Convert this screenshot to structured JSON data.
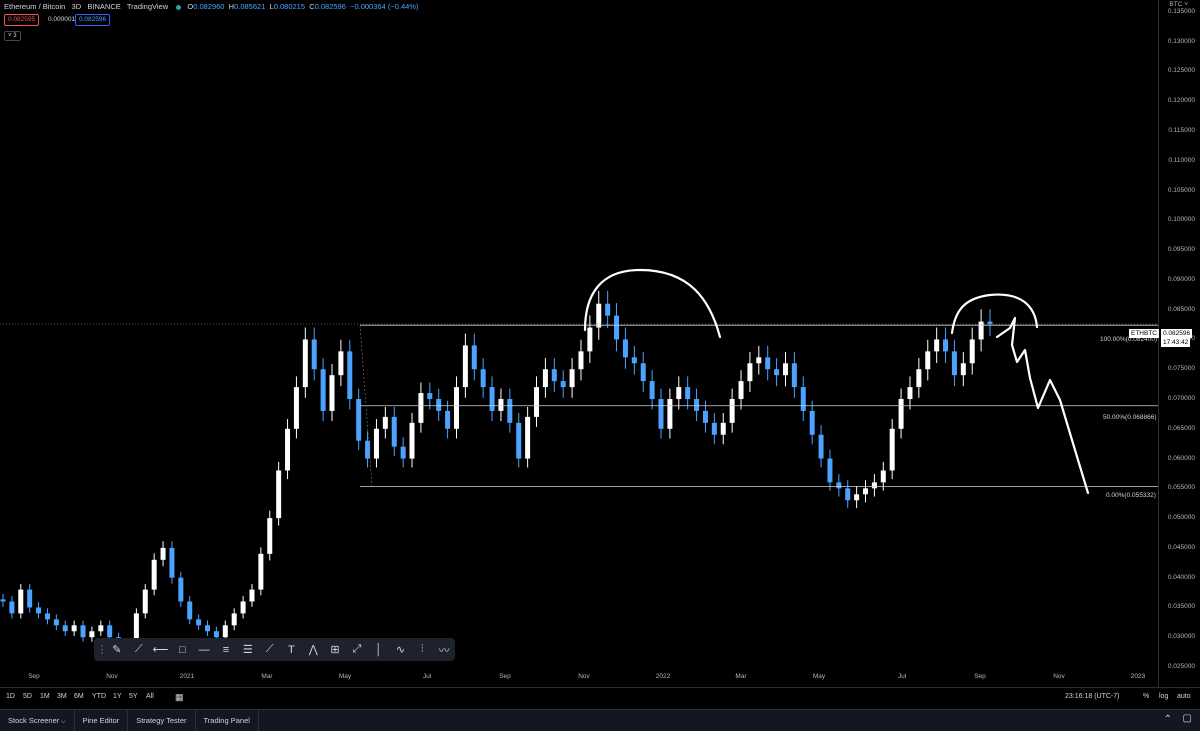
{
  "header": {
    "symbol": "Ethereum / Bitcoin",
    "interval": "3D",
    "exchange": "BINANCE",
    "source": "TradingView",
    "o_label": "O",
    "o_val": "0.082960",
    "h_label": "H",
    "h_val": "0.085621",
    "l_label": "L",
    "l_val": "0.080215",
    "c_label": "C",
    "c_val": "0.082596",
    "change": "−0.000364 (−0.44%)",
    "sell_price": "0.082595",
    "spread": "0.000001",
    "buy_price": "0.082596",
    "indicators_badge": "3"
  },
  "price_axis": {
    "currency": "BTC",
    "labels": [
      "0.135000",
      "0.130000",
      "0.125000",
      "0.120000",
      "0.115000",
      "0.110000",
      "0.105000",
      "0.100000",
      "0.095000",
      "0.090000",
      "0.085000",
      "0.080000",
      "0.075000",
      "0.070000",
      "0.065000",
      "0.060000",
      "0.055000",
      "0.050000",
      "0.045000",
      "0.040000",
      "0.035000",
      "0.030000",
      "0.025000"
    ],
    "symbol_tag": "ETHBTC",
    "last_price": "0.082596",
    "countdown": "17:43:42"
  },
  "time_axis": {
    "labels": [
      "Sep",
      "Nov",
      "2021",
      "Mar",
      "May",
      "Jul",
      "Sep",
      "Nov",
      "2022",
      "Mar",
      "May",
      "Jul",
      "Sep",
      "Nov",
      "2023"
    ]
  },
  "fib": {
    "level_100": "100.00%(0.082400)",
    "level_50": "50.00%(0.068866)",
    "level_0": "0.00%(0.055332)"
  },
  "toolbar_icons": [
    "drag-handle-icon",
    "brush-icon",
    "trend-line-icon",
    "horizontal-ray-icon",
    "rectangle-icon",
    "horizontal-line-icon",
    "parallel-channel-icon",
    "fib-retracement-icon",
    "ray-icon",
    "text-icon",
    "pattern-icon",
    "gann-box-icon",
    "measure-icon",
    "vertical-line-icon",
    "elliott-wave-icon",
    "long-position-icon",
    "path-icon"
  ],
  "range_buttons": [
    "1D",
    "5D",
    "1M",
    "3M",
    "6M",
    "YTD",
    "1Y",
    "5Y",
    "All"
  ],
  "clock": "23:16:18 (UTC-7)",
  "axis_options": {
    "percent": "%",
    "log": "log",
    "auto": "auto"
  },
  "bottom_tabs": [
    "Stock Screener",
    "Pine Editor",
    "Strategy Tester",
    "Trading Panel"
  ],
  "colors": {
    "bg": "#000000",
    "up": "#ffffff",
    "down": "#2962ff",
    "sell": "#ef5350",
    "buy": "#2962ff",
    "grid": "#2a2e39"
  },
  "chart_data": {
    "type": "candlestick",
    "title": "Ethereum / Bitcoin 3D BINANCE",
    "ylim": [
      0.025,
      0.137
    ],
    "x_ticks": [
      "Sep",
      "Nov",
      "2021",
      "Mar",
      "May",
      "Jul",
      "Sep",
      "Nov",
      "2022",
      "Mar",
      "May",
      "Jul",
      "Sep",
      "Nov",
      "2023"
    ],
    "price_path": [
      0.036,
      0.034,
      0.038,
      0.035,
      0.034,
      0.033,
      0.032,
      0.031,
      0.032,
      0.03,
      0.031,
      0.032,
      0.03,
      0.029,
      0.028,
      0.034,
      0.038,
      0.043,
      0.045,
      0.04,
      0.036,
      0.033,
      0.032,
      0.031,
      0.03,
      0.032,
      0.034,
      0.036,
      0.038,
      0.044,
      0.05,
      0.058,
      0.065,
      0.072,
      0.08,
      0.075,
      0.068,
      0.074,
      0.078,
      0.07,
      0.063,
      0.06,
      0.065,
      0.067,
      0.062,
      0.06,
      0.066,
      0.071,
      0.07,
      0.068,
      0.065,
      0.072,
      0.079,
      0.075,
      0.072,
      0.068,
      0.07,
      0.066,
      0.06,
      0.067,
      0.072,
      0.075,
      0.073,
      0.072,
      0.075,
      0.078,
      0.082,
      0.086,
      0.084,
      0.08,
      0.077,
      0.076,
      0.073,
      0.07,
      0.065,
      0.07,
      0.072,
      0.07,
      0.068,
      0.066,
      0.064,
      0.066,
      0.07,
      0.073,
      0.076,
      0.077,
      0.075,
      0.074,
      0.076,
      0.072,
      0.068,
      0.064,
      0.06,
      0.056,
      0.055,
      0.053,
      0.054,
      0.055,
      0.056,
      0.058,
      0.065,
      0.07,
      0.072,
      0.075,
      0.078,
      0.08,
      0.078,
      0.074,
      0.076,
      0.08,
      0.083,
      0.0826
    ],
    "fib_levels": [
      {
        "label": "100.00%",
        "value": 0.0824
      },
      {
        "label": "50.00%",
        "value": 0.068866
      },
      {
        "label": "0.00%",
        "value": 0.055332
      }
    ],
    "last_price": 0.082596
  }
}
